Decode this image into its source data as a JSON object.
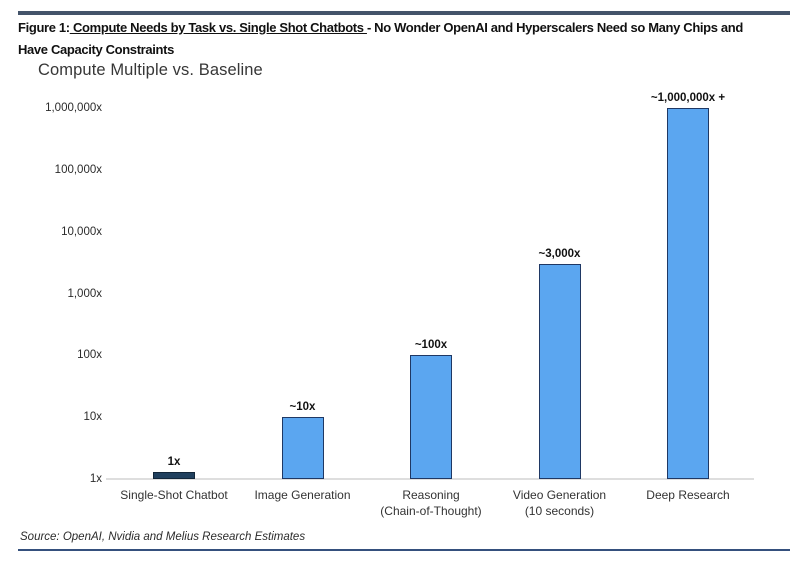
{
  "header": {
    "figure_label": "Figure 1:",
    "underlined_title": " Compute Needs by Task vs. Single Shot Chatbots ",
    "rest_of_line1": "- No Wonder OpenAI and Hyperscalers Need so Many Chips and",
    "line2": "Have Capacity Constraints"
  },
  "chart_data": {
    "type": "bar",
    "title": "Compute Multiple vs. Baseline",
    "y_scale": "log",
    "ylim": [
      1,
      1000000
    ],
    "grid": false,
    "legend": "none",
    "y_ticks": [
      "1x",
      "10x",
      "100x",
      "1,000x",
      "10,000x",
      "100,000x",
      "1,000,000x"
    ],
    "categories": [
      [
        "Single-Shot Chatbot"
      ],
      [
        "Image Generation"
      ],
      [
        "Reasoning",
        "(Chain-of-Thought)"
      ],
      [
        "Video Generation",
        "(10 seconds)"
      ],
      [
        "Deep Research"
      ]
    ],
    "values": [
      1,
      10,
      100,
      3000,
      1000000
    ],
    "value_labels": [
      "1x",
      "~10x",
      "~100x",
      "~3,000x",
      "~1,000,000x +"
    ],
    "bar_fill_colors": [
      "#20405e",
      "#5ba6f0",
      "#5ba6f0",
      "#5ba6f0",
      "#5ba6f0"
    ],
    "bar_border_colors": [
      "#122639",
      "#1f3864",
      "#1f3864",
      "#1f3864",
      "#1f3864"
    ]
  },
  "footer": {
    "source": "Source: OpenAI, Nvidia and Melius Research Estimates"
  },
  "colors": {
    "accent_bar_blue": "#5ba6f0",
    "dark_navy": "#1f3864",
    "top_rule": "#44546a",
    "bottom_rule": "#35507d",
    "baseline_gray": "#dedede"
  }
}
